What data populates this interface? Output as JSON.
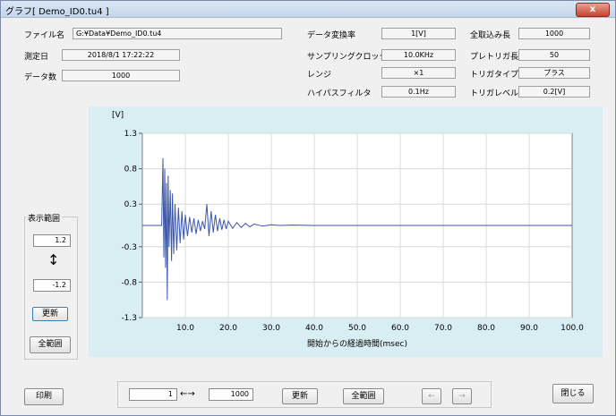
{
  "window": {
    "title": "グラフ[ Demo_ID0.tu4 ]",
    "close_label": "x"
  },
  "info": {
    "filename_label": "ファイル名",
    "filename_value": "G:¥Data¥Demo_ID0.tu4",
    "date_label": "測定日",
    "date_value": "2018/8/1 17:22:22",
    "count_label": "データ数",
    "count_value": "1000",
    "conv_rate_label": "データ変換率",
    "conv_rate_value": "1[V]",
    "sampling_label": "サンプリングクロック",
    "sampling_value": "10.0KHz",
    "range_label": "レンジ",
    "range_value": "×1",
    "hpf_label": "ハイパスフィルタ",
    "hpf_value": "0.1Hz",
    "total_len_label": "全取込み長",
    "total_len_value": "1000",
    "pretrig_label": "プレトリガ長",
    "pretrig_value": "50",
    "trig_type_label": "トリガタイプ",
    "trig_type_value": "プラス",
    "trig_level_label": "トリガレベル",
    "trig_level_value": "0.2[V]"
  },
  "range_panel": {
    "label": "表示範囲",
    "max_value": "1.2",
    "arrow": "↕",
    "min_value": "-1.2",
    "update_label": "更新",
    "full_label": "全範囲"
  },
  "bottom": {
    "print_label": "印刷",
    "start_value": "1",
    "arrow": "←→",
    "end_value": "1000",
    "update_label": "更新",
    "full_label": "全範囲",
    "prev_label": "←",
    "next_label": "→",
    "close_label": "閉じる"
  },
  "chart_data": {
    "type": "line",
    "ylabel": "[V]",
    "xlabel": "開始からの経過時間(msec)",
    "xlim": [
      0,
      100
    ],
    "ylim": [
      -1.3,
      1.3
    ],
    "x_ticks": [
      "10.0",
      "20.0",
      "30.0",
      "40.0",
      "50.0",
      "60.0",
      "70.0",
      "80.0",
      "90.0",
      "100.0"
    ],
    "y_ticks": [
      "1.3",
      "0.8",
      "0.3",
      "-0.3",
      "-0.8",
      "-1.3"
    ],
    "grid": true,
    "series_color": "#3b57a8",
    "series": [
      {
        "x": [
          0,
          4.5,
          4.8,
          5.0,
          5.2,
          5.4,
          5.6,
          5.8,
          6.0,
          6.2,
          6.5,
          6.8,
          7.0,
          7.3,
          7.6,
          8.0,
          8.4,
          8.8,
          9.2,
          9.6,
          10.0,
          10.5,
          11.0,
          11.5,
          12.0,
          12.5,
          13.0,
          13.5,
          14.0,
          14.5,
          15.0,
          15.5,
          16.0,
          16.5,
          17.0,
          17.5,
          18.0,
          18.5,
          19.0,
          19.5,
          20.0,
          21.0,
          22.0,
          23.0,
          24.0,
          25.0,
          26.0,
          28.0,
          30.0,
          32.0,
          35.0,
          40.0,
          100.0
        ],
        "y": [
          0.0,
          0.0,
          0.95,
          -0.45,
          0.8,
          -0.6,
          0.6,
          -1.05,
          0.7,
          -0.3,
          0.5,
          -0.5,
          0.45,
          -0.4,
          0.3,
          -0.35,
          0.25,
          -0.25,
          0.2,
          -0.2,
          0.15,
          -0.15,
          0.12,
          -0.1,
          0.1,
          -0.12,
          0.08,
          -0.08,
          0.06,
          -0.05,
          0.3,
          -0.15,
          0.2,
          -0.1,
          0.15,
          -0.08,
          0.1,
          -0.06,
          0.08,
          -0.05,
          0.06,
          -0.04,
          0.04,
          -0.03,
          0.03,
          -0.02,
          0.02,
          -0.01,
          0.01,
          0.0,
          0.005,
          0.0,
          0.0
        ]
      }
    ]
  }
}
